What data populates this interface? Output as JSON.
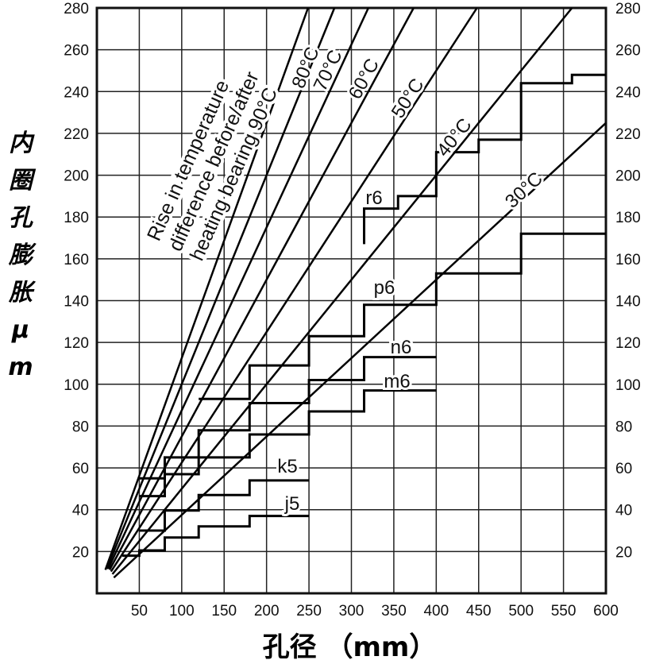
{
  "chart_data": {
    "type": "line",
    "xlabel": "孔径 （mm）",
    "ylabel_chars": [
      "内",
      "圈",
      "孔",
      "膨",
      "胀",
      "μ",
      "m"
    ],
    "xlim": [
      0,
      600
    ],
    "ylim": [
      0,
      280
    ],
    "x_ticks": [
      50,
      100,
      150,
      200,
      250,
      300,
      350,
      400,
      450,
      500,
      550,
      600
    ],
    "y_ticks": [
      20,
      40,
      60,
      80,
      100,
      120,
      140,
      160,
      180,
      200,
      220,
      240,
      260,
      280
    ],
    "grid": true,
    "annotation": [
      "Rise in temperature",
      "difference before/after",
      "heating bearing 90°C"
    ],
    "temperature_lines": [
      {
        "label": "90°C",
        "temp": 90,
        "slope": 1.125
      },
      {
        "label": "80°C",
        "temp": 80,
        "slope": 1.0
      },
      {
        "label": "70°C",
        "temp": 70,
        "slope": 0.875
      },
      {
        "label": "60°C",
        "temp": 60,
        "slope": 0.75
      },
      {
        "label": "50°C",
        "temp": 50,
        "slope": 0.625
      },
      {
        "label": "40°C",
        "temp": 40,
        "slope": 0.5
      },
      {
        "label": "30°C",
        "temp": 30,
        "slope": 0.375
      }
    ],
    "fit_steps": [
      {
        "name": "j5",
        "breaks": [
          30,
          50,
          80,
          120,
          180,
          250
        ],
        "values": [
          18,
          20.5,
          26.7,
          32,
          37
        ]
      },
      {
        "name": "k5",
        "breaks": [
          50,
          80,
          120,
          180,
          250
        ],
        "values": [
          30,
          39.6,
          47,
          54
        ]
      },
      {
        "name": "m6",
        "breaks": [
          50,
          80,
          120,
          180,
          250,
          315,
          400
        ],
        "values": [
          46.5,
          57,
          65,
          76,
          87,
          97
        ]
      },
      {
        "name": "n6",
        "breaks": [
          50,
          80,
          120,
          180,
          250,
          315,
          400
        ],
        "values": [
          55,
          65,
          78,
          91,
          102,
          113
        ]
      },
      {
        "name": "p6",
        "breaks": [
          120,
          180,
          250,
          315,
          400,
          500,
          600
        ],
        "values": [
          93,
          109,
          123,
          138,
          153,
          172
        ]
      },
      {
        "name": "r6",
        "breaks": [
          315,
          355,
          400,
          450,
          500,
          560,
          600
        ],
        "values": [
          184,
          190,
          211,
          217,
          244,
          248
        ],
        "start_value": 167
      }
    ]
  }
}
